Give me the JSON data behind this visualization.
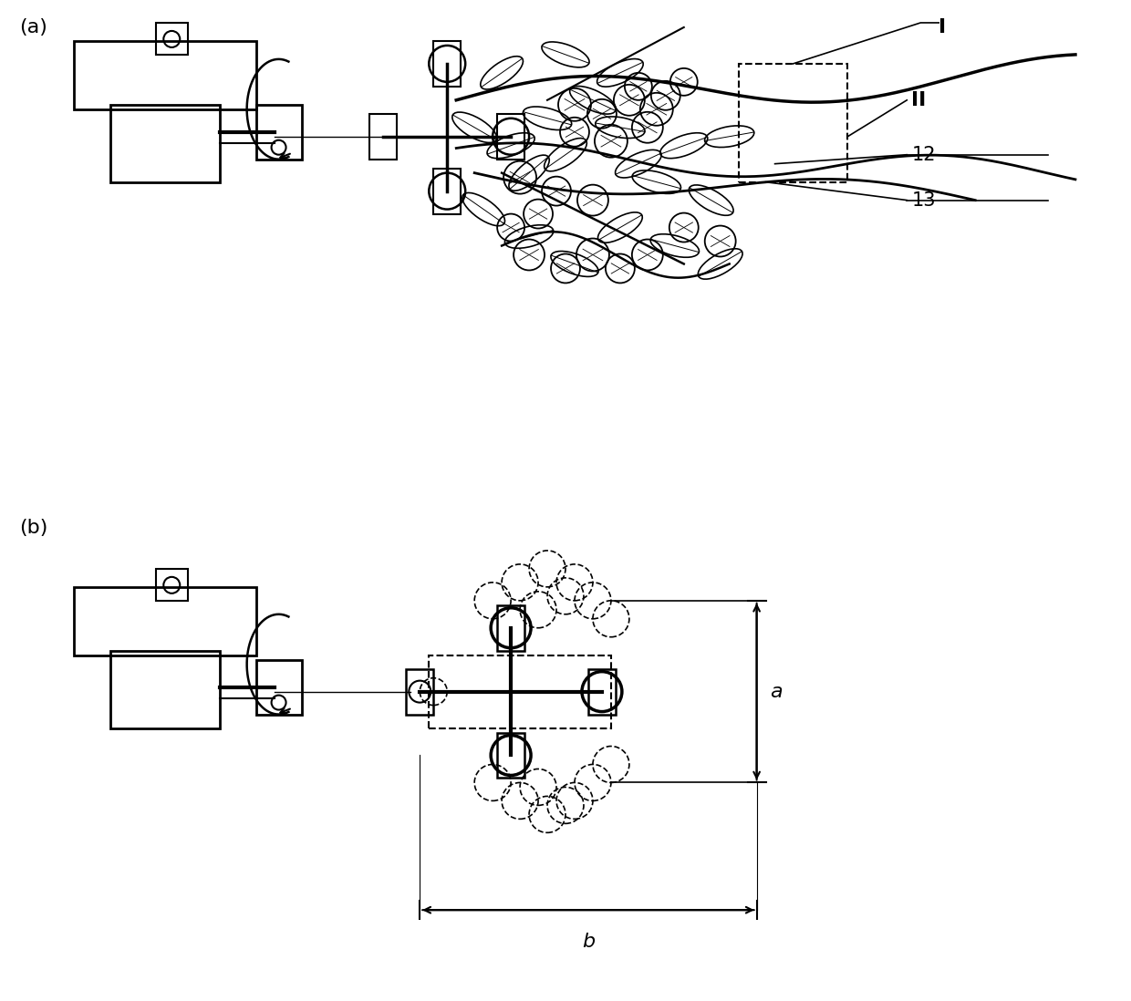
{
  "bg_color": "#ffffff",
  "line_color": "#000000",
  "label_a": "(a)",
  "label_b": "(b)",
  "label_I": "I",
  "label_II": "II",
  "label_12": "12",
  "label_13": "13",
  "label_a_dim": "a",
  "label_b_dim": "b"
}
